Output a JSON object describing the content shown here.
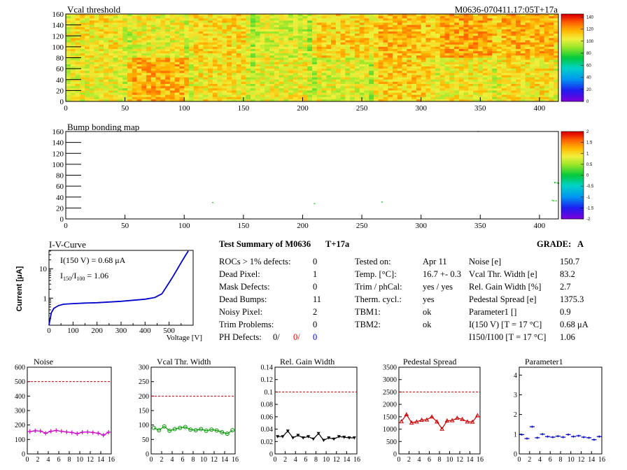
{
  "header": {
    "module_id": "M0636-070411.17:05T+17a"
  },
  "colors": {
    "heat_low": "#ffff66",
    "heat_high": "#ff6600",
    "iv_line": "#0000cc",
    "noise": "#cc00cc",
    "vcal": "#009900",
    "gain": "#000000",
    "pedestal": "#cc0000",
    "param1": "#0000cc",
    "limit_line": "#cc0000",
    "defect_red": "#ff0000",
    "defect_blue": "#0000ff"
  },
  "summary": {
    "title": "Test Summary of M0636",
    "tag": "T+17a",
    "grade_label": "GRADE:",
    "grade": "A",
    "left": [
      {
        "label": "ROCs > 1% defects:",
        "value": "0"
      },
      {
        "label": "Dead Pixel:",
        "value": "1"
      },
      {
        "label": "Mask Defects:",
        "value": "0"
      },
      {
        "label": "Dead Bumps:",
        "value": "11"
      },
      {
        "label": "Noisy Pixel:",
        "value": "2"
      },
      {
        "label": "Trim Problems:",
        "value": "0"
      }
    ],
    "ph_defects": {
      "label": "PH Defects:",
      "v1": "0/",
      "v2": "0/",
      "v3": "0"
    },
    "middle": [
      {
        "label": "Tested on:",
        "value": "Apr 11"
      },
      {
        "label": "Temp. [°C]:",
        "value": "16.7 +- 0.3"
      },
      {
        "label": "Trim / phCal:",
        "value": "yes / yes"
      },
      {
        "label": "Therm. cycl.:",
        "value": "yes"
      },
      {
        "label": "TBM1:",
        "value": "ok"
      },
      {
        "label": "TBM2:",
        "value": "ok"
      }
    ],
    "right": [
      {
        "label": "Noise [e]",
        "value": "150.7"
      },
      {
        "label": "Vcal Thr. Width [e]",
        "value": "83.2"
      },
      {
        "label": "Rel. Gain Width [%]",
        "value": "2.7"
      },
      {
        "label": "Pedestal Spread [e]",
        "value": "1375.3"
      },
      {
        "label": "Parameter1 []",
        "value": "0.9"
      },
      {
        "label": "I(150 V) [T = 17 °C]",
        "value": "0.68 μA"
      },
      {
        "label": "I150/I100 [T = 17 °C]",
        "value": "1.06"
      }
    ]
  },
  "chart_data": [
    {
      "type": "heatmap",
      "title": "Vcal threshold",
      "xlim": [
        0,
        416
      ],
      "ylim": [
        0,
        160
      ],
      "x_ticks": [
        "0",
        "50",
        "100",
        "150",
        "200",
        "250",
        "300",
        "350",
        "400"
      ],
      "y_ticks": [
        "0",
        "20",
        "40",
        "60",
        "80",
        "100",
        "120",
        "140",
        "160"
      ],
      "z_ticks": [
        "0",
        "20",
        "40",
        "60",
        "80",
        "100",
        "120",
        "140"
      ],
      "zlim": [
        0,
        145
      ],
      "roc_mean_top": [
        108,
        104,
        110,
        100,
        112,
        116,
        120,
        118
      ],
      "roc_mean_bottom": [
        104,
        118,
        108,
        104,
        102,
        112,
        106,
        108
      ]
    },
    {
      "type": "heatmap",
      "title": "Bump bonding map",
      "xlim": [
        0,
        416
      ],
      "ylim": [
        0,
        160
      ],
      "x_ticks": [
        "0",
        "50",
        "100",
        "150",
        "200",
        "250",
        "300",
        "350",
        "400"
      ],
      "y_ticks": [
        "0",
        "20",
        "40",
        "60",
        "80",
        "100",
        "120",
        "140",
        "160"
      ],
      "z_ticks": [
        "-2",
        "-1.5",
        "-1",
        "-0.5",
        "0",
        "0.5",
        "1",
        "1.5",
        "2"
      ],
      "zlim": [
        -2,
        2
      ],
      "points": [
        {
          "x": 124,
          "y": 30
        },
        {
          "x": 210,
          "y": 28
        },
        {
          "x": 267,
          "y": 31
        },
        {
          "x": 348,
          "y": 160
        },
        {
          "x": 413,
          "y": 66
        },
        {
          "x": 415,
          "y": 66
        },
        {
          "x": 412,
          "y": 33
        },
        {
          "x": 414,
          "y": 33
        },
        {
          "x": 413,
          "y": 67
        },
        {
          "x": 411,
          "y": 34
        },
        {
          "x": 416,
          "y": 65
        }
      ]
    },
    {
      "type": "line",
      "title": "I-V-Curve",
      "ylabel": "Current [μA]",
      "xlabel": "Voltage [V]",
      "x_ticks": [
        "0",
        "100",
        "200",
        "300",
        "400",
        "500"
      ],
      "y_ticks": [
        "1",
        "10"
      ],
      "xlim": [
        0,
        600
      ],
      "ylim_log": [
        0.12,
        42
      ],
      "annotation1": "I(150 V) = 0.68 μA",
      "annotation2": "I150/I100 = 1.06",
      "x": [
        0,
        5,
        10,
        20,
        40,
        60,
        100,
        150,
        200,
        300,
        400,
        440,
        470,
        490,
        510,
        530,
        550,
        570,
        580
      ],
      "y": [
        0.12,
        0.2,
        0.32,
        0.45,
        0.56,
        0.62,
        0.65,
        0.68,
        0.7,
        0.78,
        0.92,
        1.05,
        1.4,
        2.5,
        4.5,
        8.5,
        16,
        30,
        40
      ]
    },
    {
      "type": "line",
      "title": "Noise",
      "x": [
        0,
        1,
        2,
        3,
        4,
        5,
        6,
        7,
        8,
        9,
        10,
        11,
        12,
        13,
        14,
        15
      ],
      "values": [
        155,
        160,
        158,
        143,
        157,
        162,
        157,
        152,
        148,
        140,
        150,
        152,
        148,
        143,
        130,
        150
      ],
      "ylim": [
        0,
        600
      ],
      "limit": 500,
      "x_ticks": [
        "0",
        "2",
        "4",
        "6",
        "8",
        "10",
        "12",
        "14",
        "16"
      ],
      "y_ticks": [
        "0",
        "100",
        "200",
        "300",
        "400",
        "500",
        "600"
      ]
    },
    {
      "type": "line",
      "title": "Vcal Thr. Width",
      "x": [
        0,
        1,
        2,
        3,
        4,
        5,
        6,
        7,
        8,
        9,
        10,
        11,
        12,
        13,
        14,
        15
      ],
      "values": [
        90,
        82,
        95,
        80,
        86,
        90,
        93,
        84,
        82,
        86,
        80,
        84,
        81,
        75,
        70,
        82
      ],
      "ylim": [
        0,
        300
      ],
      "limit": 200,
      "x_ticks": [
        "0",
        "2",
        "4",
        "6",
        "8",
        "10",
        "12",
        "14",
        "16"
      ],
      "y_ticks": [
        "0",
        "50",
        "100",
        "150",
        "200",
        "250",
        "300"
      ]
    },
    {
      "type": "line",
      "title": "Rel. Gain Width",
      "x": [
        0,
        1,
        2,
        3,
        4,
        5,
        6,
        7,
        8,
        9,
        10,
        11,
        12,
        13,
        14,
        15
      ],
      "values": [
        0.028,
        0.028,
        0.037,
        0.026,
        0.03,
        0.026,
        0.028,
        0.024,
        0.033,
        0.022,
        0.026,
        0.024,
        0.028,
        0.027,
        0.026,
        0.026
      ],
      "ylim": [
        0,
        0.14
      ],
      "limit": 0.1,
      "x_ticks": [
        "0",
        "2",
        "4",
        "6",
        "8",
        "10",
        "12",
        "14",
        "16"
      ],
      "y_ticks": [
        "0",
        "0.02",
        "0.04",
        "0.06",
        "0.08",
        "0.1",
        "0.12",
        "0.14"
      ]
    },
    {
      "type": "line",
      "title": "Pedestal Spread",
      "x": [
        0,
        1,
        2,
        3,
        4,
        5,
        6,
        7,
        8,
        9,
        10,
        11,
        12,
        13,
        14,
        15
      ],
      "values": [
        1310,
        1590,
        1260,
        1300,
        1370,
        1380,
        1500,
        1300,
        1010,
        1340,
        1350,
        1450,
        1400,
        1300,
        1290,
        1550
      ],
      "ylim": [
        0,
        3500
      ],
      "limit": 2500,
      "x_ticks": [
        "0",
        "2",
        "4",
        "6",
        "8",
        "10",
        "12",
        "14",
        "16"
      ],
      "y_ticks": [
        "0",
        "500",
        "1000",
        "1500",
        "2000",
        "2500",
        "3000",
        "3500"
      ]
    },
    {
      "type": "scatter",
      "title": "Parameter1",
      "x": [
        0,
        1,
        2,
        3,
        4,
        5,
        6,
        7,
        8,
        9,
        10,
        11,
        12,
        13,
        14,
        15
      ],
      "values": [
        0.98,
        0.78,
        1.38,
        0.82,
        1.0,
        0.88,
        0.85,
        0.9,
        0.85,
        0.98,
        0.88,
        0.92,
        0.85,
        0.82,
        0.72,
        0.88
      ],
      "ylim": [
        0,
        4.4
      ],
      "x_ticks": [
        "0",
        "2",
        "4",
        "6",
        "8",
        "10",
        "12",
        "14",
        "16"
      ],
      "y_ticks": [
        "0",
        "1",
        "2",
        "3",
        "4"
      ]
    }
  ]
}
